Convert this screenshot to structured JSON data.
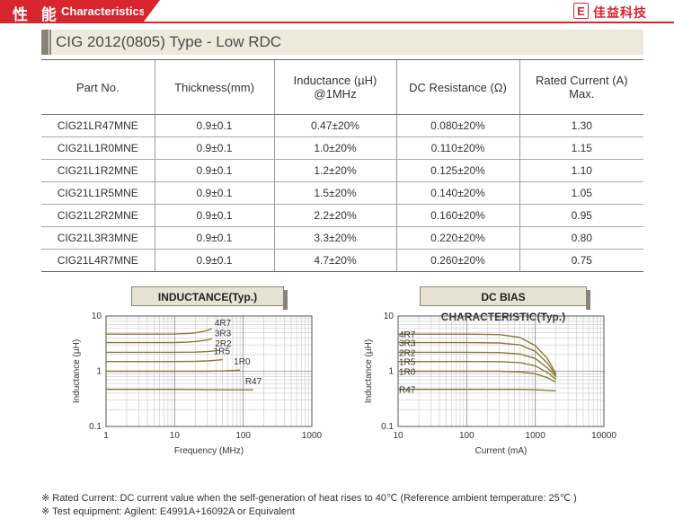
{
  "header": {
    "title_cn": "性 能",
    "title_en": "Characteristics",
    "logo_icon_text": "E",
    "logo_text": "佳益科技",
    "accent": "#d7262d"
  },
  "type_bar": {
    "title": "CIG 2012(0805) Type - Low RDC"
  },
  "table": {
    "headers": [
      {
        "line1": "Part No.",
        "line2": ""
      },
      {
        "line1": "Thickness(mm)",
        "line2": ""
      },
      {
        "line1": "Inductance (µH)",
        "line2": "@1MHz"
      },
      {
        "line1": "DC Resistance (Ω)",
        "line2": ""
      },
      {
        "line1": "Rated Current (A)",
        "line2": "Max."
      }
    ],
    "rows": [
      [
        "CIG21LR47MNE",
        "0.9±0.1",
        "0.47±20%",
        "0.080±20%",
        "1.30"
      ],
      [
        "CIG21L1R0MNE",
        "0.9±0.1",
        "1.0±20%",
        "0.110±20%",
        "1.15"
      ],
      [
        "CIG21L1R2MNE",
        "0.9±0.1",
        "1.2±20%",
        "0.125±20%",
        "1.10"
      ],
      [
        "CIG21L1R5MNE",
        "0.9±0.1",
        "1.5±20%",
        "0.140±20%",
        "1.05"
      ],
      [
        "CIG21L2R2MNE",
        "0.9±0.1",
        "2.2±20%",
        "0.160±20%",
        "0.95"
      ],
      [
        "CIG21L3R3MNE",
        "0.9±0.1",
        "3.3±20%",
        "0.220±20%",
        "0.80"
      ],
      [
        "CIG21L4R7MNE",
        "0.9±0.1",
        "4.7±20%",
        "0.260±20%",
        "0.75"
      ]
    ]
  },
  "chart_data": [
    {
      "type": "line",
      "title": "INDUCTANCE(Typ.)",
      "xlabel": "Frequency (MHz)",
      "ylabel": "Inductance (µH)",
      "xscale": "log",
      "yscale": "log",
      "xlim": [
        1,
        1000
      ],
      "ylim": [
        0.1,
        10
      ],
      "xticks": [
        {
          "v": 1,
          "label": "1"
        },
        {
          "v": 10,
          "label": "10"
        },
        {
          "v": 100,
          "label": "100"
        },
        {
          "v": 1000,
          "label": "1000"
        }
      ],
      "yticks": [
        {
          "v": 0.1,
          "label": "0.1"
        },
        {
          "v": 1,
          "label": "1"
        },
        {
          "v": 10,
          "label": "10"
        }
      ],
      "grid": true,
      "series": [
        {
          "name": "4R7",
          "x": [
            1,
            5,
            10,
            15,
            20,
            25,
            30,
            35
          ],
          "y": [
            4.7,
            4.7,
            4.72,
            4.8,
            4.95,
            5.2,
            5.5,
            5.9
          ]
        },
        {
          "name": "3R3",
          "x": [
            1,
            5,
            10,
            15,
            20,
            25,
            30,
            35
          ],
          "y": [
            3.3,
            3.3,
            3.31,
            3.36,
            3.45,
            3.56,
            3.7,
            3.85
          ]
        },
        {
          "name": "2R2",
          "x": [
            1,
            10,
            20,
            30,
            40,
            45
          ],
          "y": [
            2.2,
            2.2,
            2.22,
            2.27,
            2.35,
            2.4
          ]
        },
        {
          "name": "1R5",
          "x": [
            1,
            10,
            20,
            30,
            40,
            50
          ],
          "y": [
            1.5,
            1.5,
            1.51,
            1.54,
            1.58,
            1.62
          ]
        },
        {
          "name": "1R0",
          "x": [
            1,
            10,
            30,
            50,
            70,
            90
          ],
          "y": [
            1.0,
            1.0,
            1.0,
            1.01,
            1.03,
            1.05
          ]
        },
        {
          "name": "R47",
          "x": [
            1,
            10,
            50,
            100,
            140
          ],
          "y": [
            0.47,
            0.47,
            0.46,
            0.46,
            0.46
          ]
        }
      ]
    },
    {
      "type": "line",
      "title": "DC BIAS CHARACTERISTIC(Typ.)",
      "xlabel": "Current (mA)",
      "ylabel": "Inductance (µH)",
      "xscale": "log",
      "yscale": "log",
      "xlim": [
        10,
        10000
      ],
      "ylim": [
        0.1,
        10
      ],
      "xticks": [
        {
          "v": 10,
          "label": "10"
        },
        {
          "v": 100,
          "label": "100"
        },
        {
          "v": 1000,
          "label": "1000"
        },
        {
          "v": 10000,
          "label": "10000"
        }
      ],
      "yticks": [
        {
          "v": 0.1,
          "label": "0.1"
        },
        {
          "v": 1,
          "label": "1"
        },
        {
          "v": 10,
          "label": "10"
        }
      ],
      "grid": true,
      "series": [
        {
          "name": "4R7",
          "x": [
            10,
            100,
            300,
            600,
            1000,
            1500,
            2000
          ],
          "y": [
            4.7,
            4.7,
            4.6,
            4.1,
            2.9,
            1.7,
            0.9
          ]
        },
        {
          "name": "3R3",
          "x": [
            10,
            100,
            300,
            600,
            1000,
            1500,
            2000
          ],
          "y": [
            3.3,
            3.3,
            3.25,
            3.0,
            2.3,
            1.4,
            0.85
          ]
        },
        {
          "name": "2R2",
          "x": [
            10,
            100,
            300,
            600,
            1000,
            1500,
            2000
          ],
          "y": [
            2.2,
            2.2,
            2.18,
            2.05,
            1.7,
            1.15,
            0.8
          ]
        },
        {
          "name": "1R5",
          "x": [
            10,
            100,
            300,
            600,
            1000,
            1500,
            2000
          ],
          "y": [
            1.5,
            1.5,
            1.49,
            1.43,
            1.25,
            0.95,
            0.72
          ]
        },
        {
          "name": "1R0",
          "x": [
            10,
            100,
            300,
            600,
            1000,
            1500,
            2000
          ],
          "y": [
            1.0,
            1.0,
            1.0,
            0.97,
            0.9,
            0.76,
            0.63
          ]
        },
        {
          "name": "R47",
          "x": [
            10,
            100,
            300,
            600,
            1000,
            1500,
            2000
          ],
          "y": [
            0.47,
            0.47,
            0.47,
            0.47,
            0.46,
            0.45,
            0.44
          ]
        }
      ]
    }
  ],
  "notes": [
    "※ Rated Current: DC current value when the self-generation of heat rises to 40℃ (Reference ambient temperature: 25℃ )",
    "※ Test equipment: Agilent: E4991A+16092A or Equivalent"
  ]
}
